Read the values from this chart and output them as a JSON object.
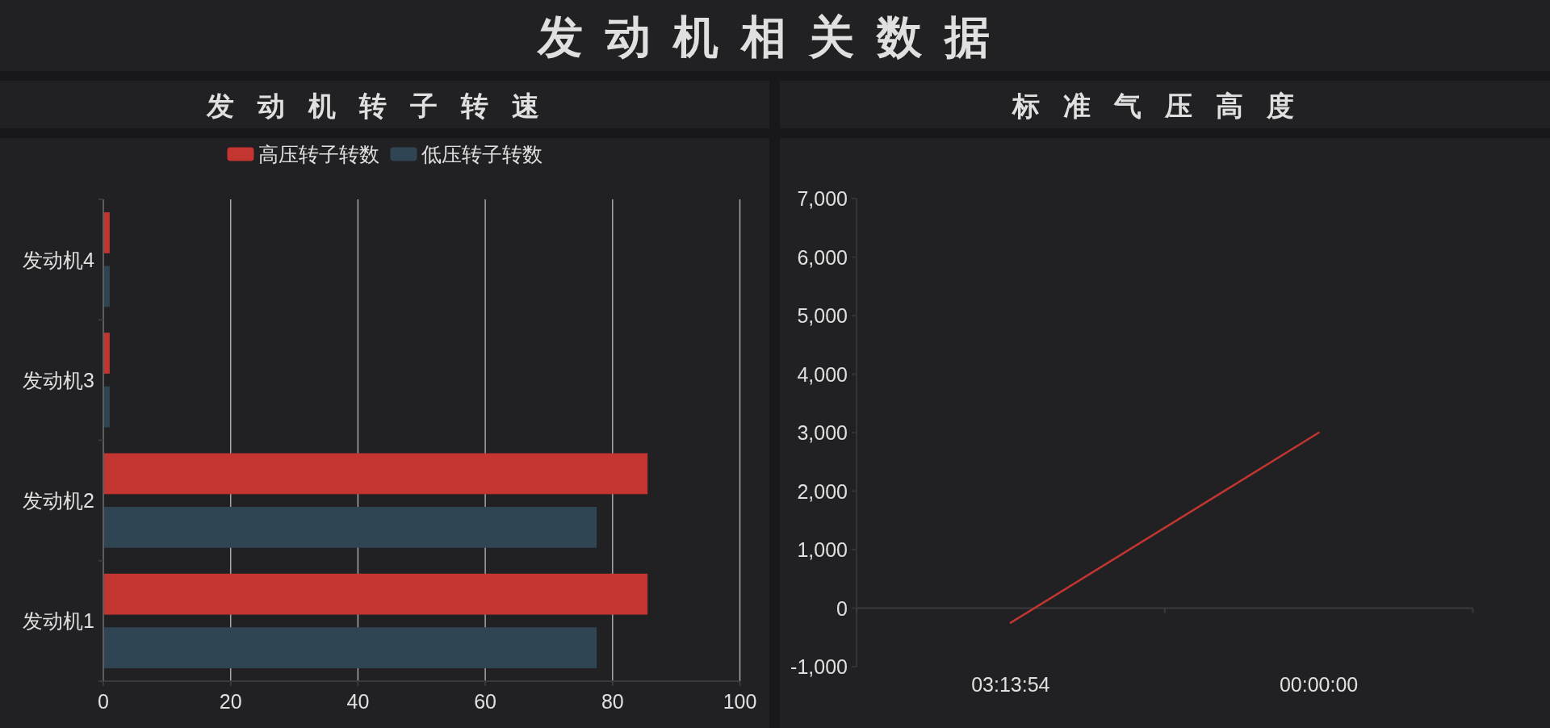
{
  "chart_data": [
    {
      "type": "other",
      "title": "发动机相关数据"
    },
    {
      "type": "bar",
      "orientation": "horizontal",
      "title": "发动机转子转速",
      "categories": [
        "发动机4",
        "发动机3",
        "发动机2",
        "发动机1"
      ],
      "series": [
        {
          "name": "高压转子转数",
          "color": "#c23531",
          "values": [
            1,
            1,
            85.5,
            85.5
          ]
        },
        {
          "name": "低压转子转数",
          "color": "#2f4554",
          "values": [
            1,
            1,
            77.5,
            77.5
          ]
        }
      ],
      "xlim": [
        0,
        100
      ],
      "xticks": [
        0,
        20,
        40,
        60,
        80,
        100
      ],
      "grid": "x",
      "legend": "top"
    },
    {
      "type": "line",
      "title": "标准气压高度",
      "categories": [
        "03:13:54",
        "00:00:00"
      ],
      "series": [
        {
          "color": "#c23531",
          "values": [
            -250,
            3000
          ]
        }
      ],
      "ylim": [
        -1000,
        7000
      ],
      "yticks": [
        {
          "value": -1000,
          "label": "-1,000"
        },
        0,
        {
          "value": 1000,
          "label": "1,000"
        },
        {
          "value": 2000,
          "label": "2,000"
        },
        {
          "value": 3000,
          "label": "3,000"
        },
        {
          "value": 4000,
          "label": "4,000"
        },
        {
          "value": 5000,
          "label": "5,000"
        },
        {
          "value": 6000,
          "label": "6,000"
        },
        {
          "value": 7000,
          "label": "7,000"
        }
      ]
    }
  ]
}
